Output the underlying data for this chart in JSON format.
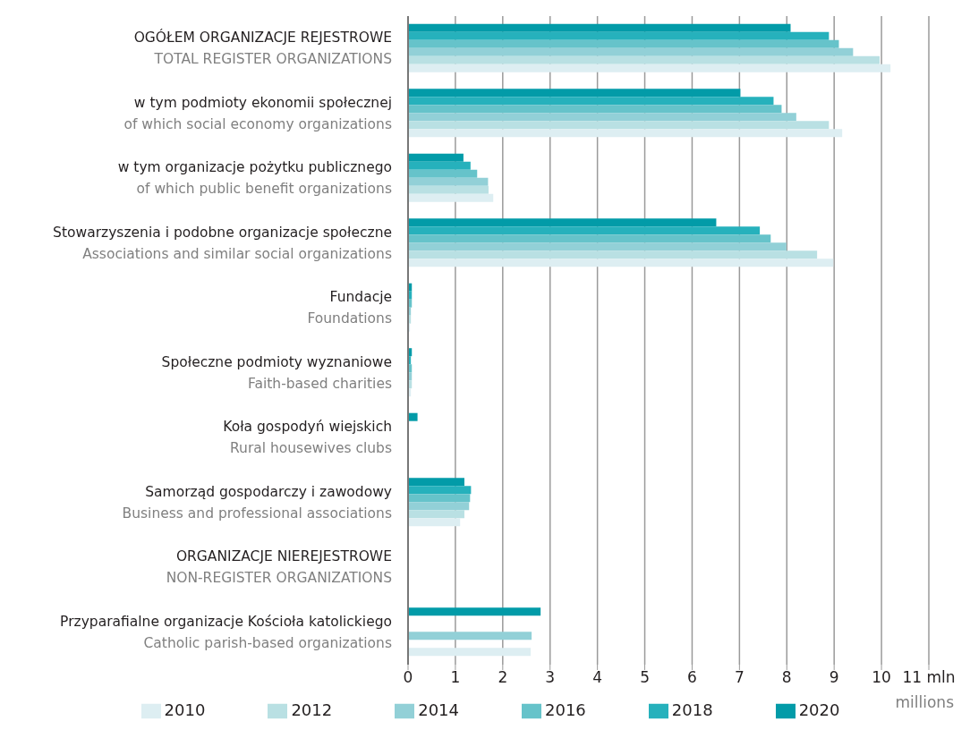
{
  "chart_data": {
    "type": "bar",
    "orientation": "horizontal",
    "xlabel": "millions",
    "categories": [
      "OGÓŁEM ORGANIZACJE REJESTROWE\nTOTAL REGISTER ORGANIZATIONS",
      "w tym podmioty ekonomii społecznej\nof which social economy organizations",
      "w tym organizacje pożytku publicznego\nof which public benefit organizations",
      "Stowarzyszenia i podobne organizacje społeczne\nAssociations and similar social organizations",
      "Fundacje\nFoundations",
      "Społeczne podmioty wyznaniowe\nFaith-based charities",
      "Koła gospodyń wiejskich\nRural housewives clubs",
      "Samorząd gospodarczy i zawodowy\nBusiness and professional associations",
      "ORGANIZACJE NIEREJESTROWE\nNON-REGISTER ORGANIZATIONS",
      "Przyparafialne organizacje Kościoła katolickiego\nCatholic parish-based organizations"
    ],
    "series": [
      {
        "name": "2010",
        "color": "#ddeef2",
        "values": [
          10.19,
          9.17,
          1.8,
          8.98,
          0.04,
          0.06,
          null,
          1.1,
          null,
          2.59
        ]
      },
      {
        "name": "2012",
        "color": "#b9e0e3",
        "values": [
          9.96,
          8.89,
          1.7,
          8.64,
          0.06,
          0.08,
          null,
          1.19,
          null,
          null
        ]
      },
      {
        "name": "2014",
        "color": "#92d0d7",
        "values": [
          9.4,
          8.2,
          1.69,
          7.99,
          0.06,
          0.08,
          null,
          1.29,
          null,
          2.61
        ]
      },
      {
        "name": "2016",
        "color": "#66c3ca",
        "values": [
          9.1,
          7.89,
          1.46,
          7.66,
          0.08,
          0.08,
          null,
          1.31,
          null,
          null
        ]
      },
      {
        "name": "2018",
        "color": "#26b1bc",
        "values": [
          8.89,
          7.72,
          1.32,
          7.43,
          0.08,
          0.06,
          null,
          1.33,
          null,
          null
        ]
      },
      {
        "name": "2020",
        "color": "#029ba8",
        "values": [
          8.08,
          7.02,
          1.17,
          6.51,
          0.08,
          0.08,
          0.2,
          1.19,
          null,
          2.8
        ]
      }
    ],
    "xlim": [
      0,
      11
    ],
    "xticks": [
      0,
      1,
      2,
      3,
      4,
      5,
      6,
      7,
      8,
      9,
      10,
      {
        "value": 11,
        "label": "11 mln"
      }
    ],
    "grid": "x",
    "legend": "bottom"
  }
}
